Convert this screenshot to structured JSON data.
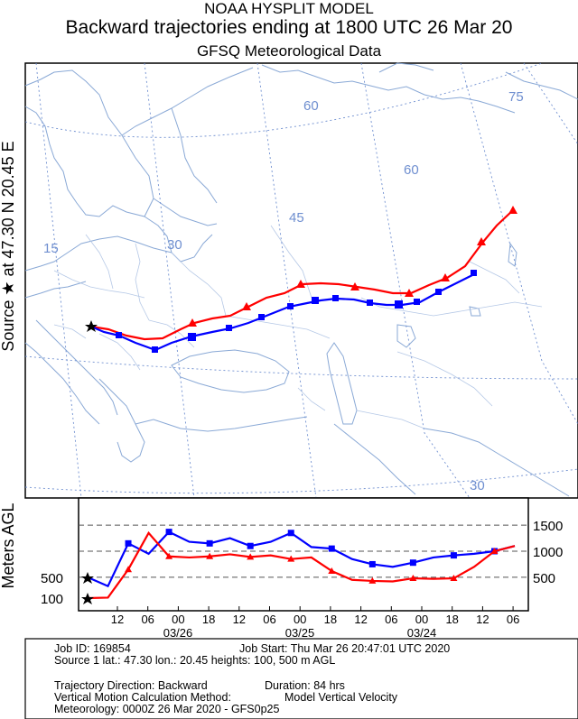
{
  "header": {
    "line1": "NOAA HYSPLIT MODEL",
    "line2": "Backward trajectories ending at 1800 UTC 26 Mar 20",
    "line3": "GFSQ Meteorological Data"
  },
  "side_label": "Source ★ at 47.30 N 20.45 E",
  "map": {
    "meridian_labels": [
      "15",
      "30",
      "45",
      "60",
      "75"
    ],
    "parallel_labels": [
      "60",
      "30"
    ],
    "land_color": "#ffffff",
    "border_color": "#8aa9d6",
    "grid_color": "#6f8fd0"
  },
  "chart_data": {
    "type": "line",
    "ylabel": "Meters AGL",
    "y_ticks_right": [
      "1500",
      "1000",
      "500"
    ],
    "y_ticks_left": [
      "500",
      "100"
    ],
    "x_tick_labels": [
      "12",
      "06",
      "00",
      "18",
      "12",
      "06",
      "00",
      "18",
      "12",
      "06",
      "00",
      "18",
      "12",
      "06"
    ],
    "date_labels": [
      "03/26",
      "03/25",
      "03/24"
    ],
    "series": [
      {
        "color": "#0000ff",
        "marker": "square",
        "values": [
          500,
          330,
          1150,
          950,
          1370,
          1180,
          1150,
          1250,
          1100,
          1180,
          1350,
          1080,
          1050,
          850,
          750,
          700,
          780,
          880,
          920,
          950,
          1000,
          1100
        ]
      },
      {
        "color": "#ff0000",
        "marker": "triangle",
        "values": [
          100,
          110,
          650,
          1350,
          900,
          880,
          900,
          940,
          890,
          920,
          850,
          880,
          620,
          450,
          430,
          420,
          480,
          470,
          480,
          700,
          1000,
          1100
        ]
      }
    ]
  },
  "info": {
    "job_id": "Job ID: 169854",
    "job_start": "Job Start: Thu Mar 26 20:47:01 UTC 2020",
    "source": "Source 1 lat.: 47.30  lon.: 20.45  heights: 100, 500 m AGL",
    "direction": "Trajectory Direction: Backward",
    "duration": "Duration: 84 hrs",
    "vertical_method": "Vertical Motion Calculation Method:",
    "vertical_value": "Model Vertical Velocity",
    "meteorology": "Meteorology: 0000Z 26 Mar 2020 - GFS0p25"
  }
}
